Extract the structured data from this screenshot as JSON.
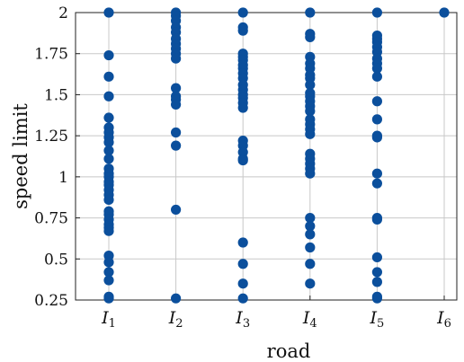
{
  "chart_data": {
    "type": "scatter",
    "title": "",
    "xlabel": "road",
    "ylabel": "speed limit",
    "categories": [
      {
        "main": "I",
        "sub": "1"
      },
      {
        "main": "I",
        "sub": "2"
      },
      {
        "main": "I",
        "sub": "3"
      },
      {
        "main": "I",
        "sub": "4"
      },
      {
        "main": "I",
        "sub": "5"
      },
      {
        "main": "I",
        "sub": "6"
      }
    ],
    "ylim": [
      0.25,
      2
    ],
    "yticks": [
      "0.25",
      "0.5",
      "0.75",
      "1",
      "1.25",
      "1.5",
      "1.75",
      "2"
    ],
    "grid": true,
    "marker_color": "#0b4f9c",
    "points": [
      {
        "x": "I1",
        "y": [
          2.0,
          1.74,
          1.61,
          1.49,
          1.36,
          1.3,
          1.27,
          1.24,
          1.21,
          1.16,
          1.11,
          1.05,
          1.02,
          1.0,
          0.97,
          0.95,
          0.92,
          0.89,
          0.86,
          0.79,
          0.77,
          0.74,
          0.71,
          0.69,
          0.67,
          0.52,
          0.48,
          0.42,
          0.37,
          0.27,
          0.26
        ]
      },
      {
        "x": "I2",
        "y": [
          2.0,
          1.98,
          1.95,
          1.91,
          1.88,
          1.84,
          1.81,
          1.78,
          1.75,
          1.72,
          1.54,
          1.49,
          1.47,
          1.44,
          1.27,
          1.19,
          0.8,
          0.26
        ]
      },
      {
        "x": "I3",
        "y": [
          2.0,
          1.91,
          1.89,
          1.75,
          1.73,
          1.71,
          1.68,
          1.66,
          1.63,
          1.6,
          1.56,
          1.53,
          1.5,
          1.48,
          1.45,
          1.42,
          1.22,
          1.19,
          1.15,
          1.11,
          1.1,
          0.6,
          0.47,
          0.35,
          0.26
        ]
      },
      {
        "x": "I4",
        "y": [
          2.0,
          1.87,
          1.85,
          1.73,
          1.69,
          1.66,
          1.62,
          1.6,
          1.56,
          1.51,
          1.49,
          1.46,
          1.43,
          1.4,
          1.35,
          1.32,
          1.29,
          1.26,
          1.14,
          1.11,
          1.08,
          1.05,
          1.02,
          0.75,
          0.7,
          0.65,
          0.57,
          0.47,
          0.35
        ]
      },
      {
        "x": "I5",
        "y": [
          2.0,
          1.86,
          1.84,
          1.82,
          1.79,
          1.76,
          1.72,
          1.69,
          1.66,
          1.61,
          1.46,
          1.35,
          1.25,
          1.24,
          1.02,
          0.96,
          0.75,
          0.74,
          0.51,
          0.42,
          0.36,
          0.27,
          0.26
        ]
      },
      {
        "x": "I6",
        "y": [
          2.0
        ]
      }
    ]
  }
}
